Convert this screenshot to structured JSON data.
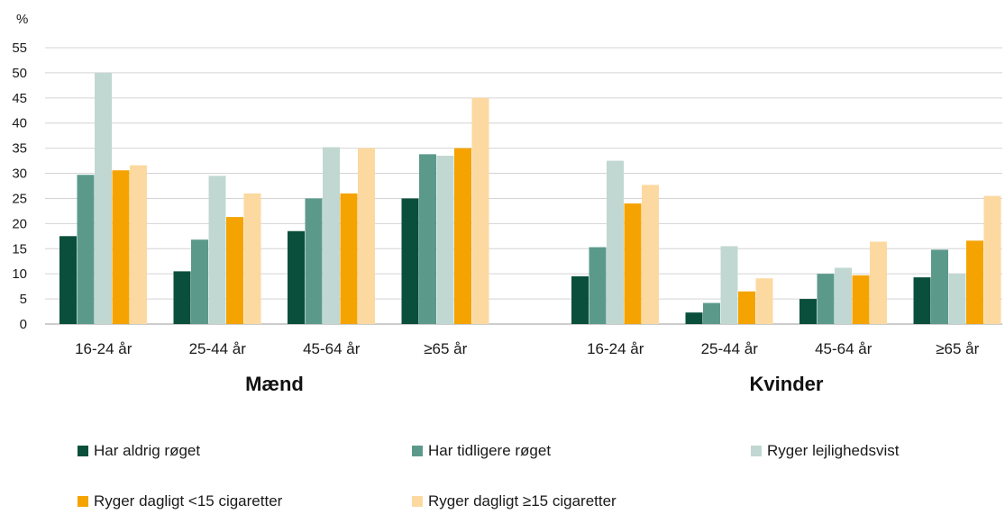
{
  "chart_data": {
    "type": "bar",
    "ylabel": "%",
    "ylim": [
      0,
      55
    ],
    "yticks": [
      0,
      5,
      10,
      15,
      20,
      25,
      30,
      35,
      40,
      45,
      50,
      55
    ],
    "grid": true,
    "legend_position": "bottom",
    "groups": [
      {
        "name": "Mænd",
        "categories": [
          "16-24 år",
          "25-44 år",
          "45-64 år",
          "≥65 år"
        ]
      },
      {
        "name": "Kvinder",
        "categories": [
          "16-24 år",
          "25-44 år",
          "45-64 år",
          "≥65 år"
        ]
      }
    ],
    "series": [
      {
        "name": "Har aldrig røget",
        "color": "#0a4f3c",
        "values": [
          [
            17.5,
            10.5,
            18.5,
            25
          ],
          [
            9.5,
            2.3,
            5,
            9.3
          ]
        ]
      },
      {
        "name": "Har tidligere røget",
        "color": "#5b9a8b",
        "values": [
          [
            29.7,
            16.8,
            25,
            33.8
          ],
          [
            15.3,
            4.2,
            10,
            14.8
          ]
        ]
      },
      {
        "name": "Ryger lejlighedsvist",
        "color": "#c0d8d1",
        "values": [
          [
            50,
            29.5,
            35.2,
            33.5
          ],
          [
            32.5,
            15.5,
            11.2,
            10
          ]
        ]
      },
      {
        "name": "Ryger dagligt <15 cigaretter",
        "color": "#f5a300",
        "values": [
          [
            30.6,
            21.3,
            26,
            35
          ],
          [
            24,
            6.5,
            9.7,
            16.6
          ]
        ]
      },
      {
        "name": "Ryger dagligt ≥15 cigaretter",
        "color": "#fcd9a0",
        "values": [
          [
            31.6,
            26,
            35,
            45
          ],
          [
            27.7,
            9.1,
            16.4,
            25.5
          ]
        ]
      }
    ]
  }
}
